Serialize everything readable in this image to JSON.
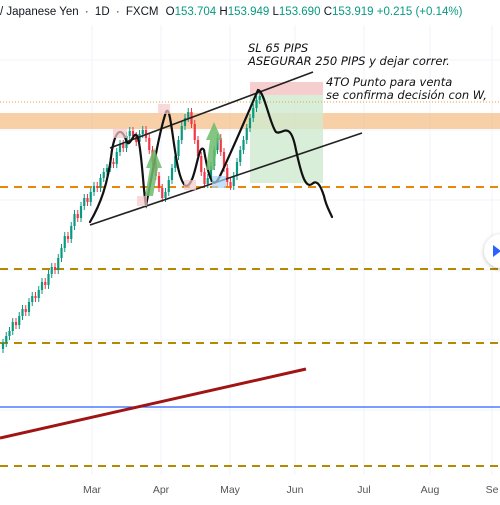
{
  "header": {
    "symbol": "/ Japanese Yen",
    "interval": "1D",
    "source": "FXCM",
    "ohlc": {
      "open_label": "O",
      "open": "153.704",
      "high_label": "H",
      "high": "153.949",
      "low_label": "L",
      "low": "153.690",
      "close_label": "C",
      "close": "153.919",
      "change": "+0.215 (+0.14%)"
    }
  },
  "annotations": {
    "sl_line1": "SL 65 PIPS",
    "sl_line2": "ASEGURAR 250 PIPS y dejar correr.",
    "sell_line1": "4TO Punto para venta",
    "sell_line2": "se confirma decisión con W,"
  },
  "chart_data": {
    "type": "candlestick",
    "x_ticks": [
      "Mar",
      "Apr",
      "May",
      "Jun",
      "Jul",
      "Aug",
      "Se"
    ],
    "colors": {
      "up": "#089981",
      "down": "#f23645",
      "level_dashed": "#e8860c",
      "level_dashed_dark": "#b38a00",
      "resistance_zone": "#f6c08a",
      "trendline": "#a01414",
      "hline_blue": "#2962ff",
      "target_zone": "#cfeacf",
      "stop_zone": "#f6c9c9"
    },
    "candles": [
      {
        "o": 349,
        "c": 343
      },
      {
        "o": 343,
        "c": 336
      },
      {
        "o": 336,
        "c": 331
      },
      {
        "o": 331,
        "c": 322
      },
      {
        "o": 322,
        "c": 325
      },
      {
        "o": 325,
        "c": 316
      },
      {
        "o": 316,
        "c": 309
      },
      {
        "o": 309,
        "c": 312
      },
      {
        "o": 312,
        "c": 302
      },
      {
        "o": 302,
        "c": 296
      },
      {
        "o": 296,
        "c": 298
      },
      {
        "o": 298,
        "c": 290
      },
      {
        "o": 290,
        "c": 282
      },
      {
        "o": 282,
        "c": 285
      },
      {
        "o": 285,
        "c": 274
      },
      {
        "o": 274,
        "c": 267
      },
      {
        "o": 267,
        "c": 270
      },
      {
        "o": 270,
        "c": 258
      },
      {
        "o": 258,
        "c": 248
      },
      {
        "o": 248,
        "c": 236
      },
      {
        "o": 236,
        "c": 239
      },
      {
        "o": 239,
        "c": 226
      },
      {
        "o": 226,
        "c": 214
      },
      {
        "o": 214,
        "c": 218
      },
      {
        "o": 218,
        "c": 206
      },
      {
        "o": 206,
        "c": 198
      },
      {
        "o": 198,
        "c": 202
      },
      {
        "o": 202,
        "c": 192
      },
      {
        "o": 192,
        "c": 186
      },
      {
        "o": 186,
        "c": 188
      },
      {
        "o": 188,
        "c": 178
      },
      {
        "o": 178,
        "c": 172
      },
      {
        "o": 172,
        "c": 168
      },
      {
        "o": 168,
        "c": 162
      },
      {
        "o": 162,
        "c": 164
      },
      {
        "o": 164,
        "c": 152
      },
      {
        "o": 152,
        "c": 144
      },
      {
        "o": 144,
        "c": 148
      },
      {
        "o": 148,
        "c": 136
      },
      {
        "o": 136,
        "c": 131
      },
      {
        "o": 131,
        "c": 136
      },
      {
        "o": 136,
        "c": 142
      },
      {
        "o": 142,
        "c": 134
      },
      {
        "o": 134,
        "c": 130
      },
      {
        "o": 130,
        "c": 138
      },
      {
        "o": 138,
        "c": 150
      },
      {
        "o": 150,
        "c": 162
      },
      {
        "o": 162,
        "c": 176
      },
      {
        "o": 176,
        "c": 188
      },
      {
        "o": 188,
        "c": 198
      },
      {
        "o": 198,
        "c": 192
      },
      {
        "o": 192,
        "c": 180
      },
      {
        "o": 180,
        "c": 168
      },
      {
        "o": 168,
        "c": 156
      },
      {
        "o": 156,
        "c": 140
      },
      {
        "o": 140,
        "c": 126
      },
      {
        "o": 126,
        "c": 118
      },
      {
        "o": 118,
        "c": 112
      },
      {
        "o": 112,
        "c": 124
      },
      {
        "o": 124,
        "c": 140
      },
      {
        "o": 140,
        "c": 156
      },
      {
        "o": 156,
        "c": 172
      },
      {
        "o": 172,
        "c": 184
      },
      {
        "o": 184,
        "c": 178
      },
      {
        "o": 178,
        "c": 166
      },
      {
        "o": 166,
        "c": 150
      },
      {
        "o": 150,
        "c": 138
      },
      {
        "o": 138,
        "c": 152
      },
      {
        "o": 152,
        "c": 168
      },
      {
        "o": 168,
        "c": 182
      },
      {
        "o": 182,
        "c": 186
      },
      {
        "o": 186,
        "c": 176
      },
      {
        "o": 176,
        "c": 162
      },
      {
        "o": 162,
        "c": 150
      },
      {
        "o": 150,
        "c": 140
      },
      {
        "o": 140,
        "c": 128
      },
      {
        "o": 128,
        "c": 118
      },
      {
        "o": 118,
        "c": 108
      },
      {
        "o": 108,
        "c": 100
      },
      {
        "o": 100,
        "c": 96
      }
    ]
  }
}
